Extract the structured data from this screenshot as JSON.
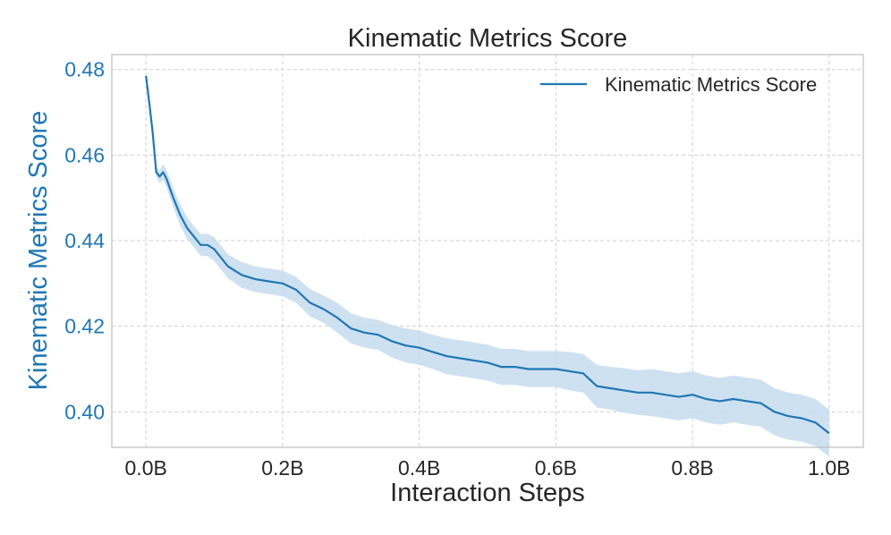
{
  "chart_data": {
    "type": "line",
    "title": "Kinematic Metrics Score",
    "xlabel": "Interaction Steps",
    "ylabel": "Kinematic Metrics Score",
    "xlim": [
      -0.05,
      1.05
    ],
    "ylim": [
      0.3917,
      0.4835
    ],
    "x_ticks": [
      0.0,
      0.2,
      0.4,
      0.6,
      0.8,
      1.0
    ],
    "x_tick_labels": [
      "0.0B",
      "0.2B",
      "0.4B",
      "0.6B",
      "0.8B",
      "1.0B"
    ],
    "y_ticks": [
      0.4,
      0.42,
      0.44,
      0.46,
      0.48
    ],
    "y_tick_labels": [
      "0.40",
      "0.42",
      "0.44",
      "0.46",
      "0.48"
    ],
    "grid": true,
    "legend": {
      "position": "top-right",
      "entries": [
        "Kinematic Metrics Score"
      ]
    },
    "colors": {
      "line": "#1f77b4",
      "band": "#c6dcef",
      "grid": "#d0d0d0",
      "frame": "#bfbfbf"
    },
    "series": [
      {
        "name": "Kinematic Metrics Score",
        "x": [
          0.0,
          0.005,
          0.01,
          0.015,
          0.02,
          0.025,
          0.03,
          0.04,
          0.05,
          0.06,
          0.07,
          0.08,
          0.09,
          0.1,
          0.12,
          0.14,
          0.16,
          0.18,
          0.2,
          0.22,
          0.24,
          0.26,
          0.28,
          0.3,
          0.32,
          0.34,
          0.36,
          0.38,
          0.4,
          0.42,
          0.44,
          0.46,
          0.48,
          0.5,
          0.52,
          0.54,
          0.56,
          0.58,
          0.6,
          0.62,
          0.64,
          0.66,
          0.68,
          0.7,
          0.72,
          0.74,
          0.76,
          0.78,
          0.8,
          0.82,
          0.84,
          0.86,
          0.88,
          0.9,
          0.92,
          0.94,
          0.96,
          0.98,
          1.0
        ],
        "values": [
          0.4785,
          0.472,
          0.465,
          0.456,
          0.455,
          0.456,
          0.4545,
          0.45,
          0.446,
          0.443,
          0.441,
          0.439,
          0.439,
          0.438,
          0.434,
          0.432,
          0.431,
          0.4305,
          0.43,
          0.4285,
          0.4255,
          0.424,
          0.422,
          0.4195,
          0.4185,
          0.418,
          0.4165,
          0.4155,
          0.415,
          0.414,
          0.413,
          0.4125,
          0.412,
          0.4115,
          0.4105,
          0.4105,
          0.41,
          0.41,
          0.41,
          0.4095,
          0.409,
          0.406,
          0.4055,
          0.405,
          0.4045,
          0.4045,
          0.404,
          0.4035,
          0.404,
          0.403,
          0.4025,
          0.403,
          0.4025,
          0.402,
          0.4,
          0.399,
          0.3985,
          0.3975,
          0.395
        ],
        "band_halfwidth": [
          0.0005,
          0.0008,
          0.001,
          0.0012,
          0.0015,
          0.0018,
          0.002,
          0.0022,
          0.0025,
          0.0025,
          0.0025,
          0.0025,
          0.0026,
          0.0028,
          0.0028,
          0.003,
          0.003,
          0.003,
          0.003,
          0.003,
          0.0032,
          0.0032,
          0.0035,
          0.0035,
          0.0035,
          0.0035,
          0.0038,
          0.004,
          0.004,
          0.004,
          0.0042,
          0.0042,
          0.0042,
          0.0042,
          0.0042,
          0.0042,
          0.0042,
          0.0042,
          0.0042,
          0.0045,
          0.0045,
          0.005,
          0.005,
          0.0052,
          0.0052,
          0.0055,
          0.0055,
          0.0055,
          0.0055,
          0.0055,
          0.0055,
          0.0055,
          0.0055,
          0.0055,
          0.0055,
          0.0055,
          0.0055,
          0.0055,
          0.0055
        ]
      }
    ]
  }
}
